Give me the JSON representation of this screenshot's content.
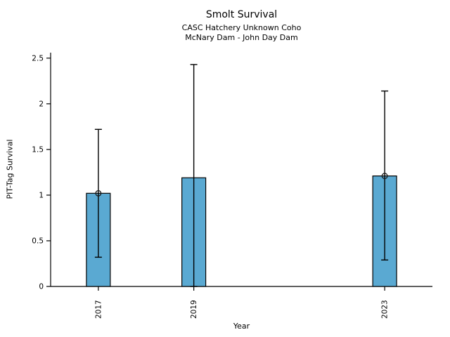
{
  "chart_data": {
    "type": "bar",
    "title": "Smolt Survival",
    "subtitle1": "CASC Hatchery Unknown Coho",
    "subtitle2": "McNary Dam - John Day Dam",
    "xlabel": "Year",
    "ylabel": "PIT-Tag Survival",
    "categories": [
      "2017",
      "2019",
      "2023"
    ],
    "x": [
      2017,
      2019,
      2023
    ],
    "values": [
      1.02,
      1.19,
      1.21
    ],
    "error_low": [
      0.32,
      0.0,
      0.29
    ],
    "error_high": [
      1.72,
      2.43,
      2.14
    ],
    "point_markers": [
      true,
      false,
      true
    ],
    "bar_width_years": 0.5,
    "xlim": [
      2016,
      2024
    ],
    "ylim": [
      0,
      2.56
    ],
    "yticks": [
      0,
      0.5,
      1,
      1.5,
      2,
      2.5
    ],
    "ytick_labels": [
      "0",
      "0.5",
      "1",
      "1.5",
      "2",
      "2.5"
    ],
    "bar_color": "#5AA9D2",
    "bar_edge_color": "#000000",
    "error_color": "#000000",
    "axis_color": "#000000",
    "grid": false,
    "legend": null
  }
}
